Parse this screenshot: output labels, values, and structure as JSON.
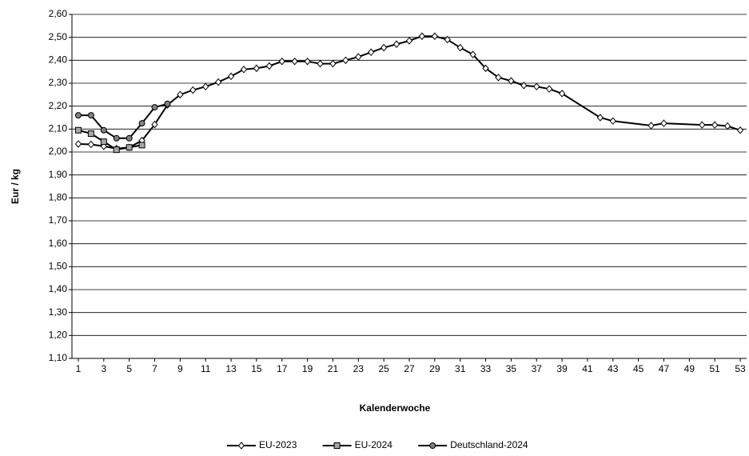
{
  "chart_data": {
    "type": "line",
    "ylabel": "Eur / kg",
    "xlabel": "Kalenderwoche",
    "xlim": [
      0.5,
      53.5
    ],
    "xticks": [
      1,
      3,
      5,
      7,
      9,
      11,
      13,
      15,
      17,
      19,
      21,
      23,
      25,
      27,
      29,
      31,
      33,
      35,
      37,
      39,
      41,
      43,
      45,
      47,
      49,
      51,
      53
    ],
    "ylim": [
      1.1,
      2.6
    ],
    "yticks": [
      {
        "value": 1.1,
        "label": "1,10"
      },
      {
        "value": 1.2,
        "label": "1,20"
      },
      {
        "value": 1.3,
        "label": "1,30"
      },
      {
        "value": 1.4,
        "label": "1,40"
      },
      {
        "value": 1.5,
        "label": "1,50"
      },
      {
        "value": 1.6,
        "label": "1,60"
      },
      {
        "value": 1.7,
        "label": "1,70"
      },
      {
        "value": 1.8,
        "label": "1,80"
      },
      {
        "value": 1.9,
        "label": "1,90"
      },
      {
        "value": 2.0,
        "label": "2,00"
      },
      {
        "value": 2.1,
        "label": "2,10"
      },
      {
        "value": 2.2,
        "label": "2,20"
      },
      {
        "value": 2.3,
        "label": "2,30"
      },
      {
        "value": 2.4,
        "label": "2,40"
      },
      {
        "value": 2.5,
        "label": "2,50"
      },
      {
        "value": 2.6,
        "label": "2,60"
      }
    ],
    "grid": true,
    "legend": "bottom",
    "series": [
      {
        "name": "EU-2023",
        "color": "#000000",
        "marker": "diamond",
        "marker_fill": "#ffffff",
        "x": [
          1,
          2,
          3,
          4,
          5,
          6,
          7,
          8,
          9,
          10,
          11,
          12,
          13,
          14,
          15,
          16,
          17,
          18,
          19,
          20,
          21,
          22,
          23,
          24,
          25,
          26,
          27,
          28,
          29,
          30,
          31,
          32,
          33,
          34,
          35,
          36,
          37,
          38,
          39,
          42,
          43,
          46,
          47,
          50,
          51,
          52,
          53
        ],
        "values": [
          2.035,
          2.033,
          2.025,
          2.015,
          2.02,
          2.05,
          2.12,
          2.205,
          2.25,
          2.27,
          2.285,
          2.305,
          2.33,
          2.36,
          2.365,
          2.375,
          2.395,
          2.395,
          2.395,
          2.385,
          2.385,
          2.4,
          2.415,
          2.435,
          2.455,
          2.47,
          2.485,
          2.505,
          2.505,
          2.49,
          2.455,
          2.425,
          2.365,
          2.325,
          2.31,
          2.29,
          2.285,
          2.275,
          2.255,
          2.15,
          2.135,
          2.115,
          2.125,
          2.118,
          2.118,
          2.113,
          2.095
        ]
      },
      {
        "name": "EU-2024",
        "color": "#000000",
        "marker": "square",
        "marker_fill": "#a6a6a6",
        "x": [
          1,
          2,
          3,
          4,
          5,
          6
        ],
        "values": [
          2.095,
          2.08,
          2.045,
          2.01,
          2.02,
          2.03
        ]
      },
      {
        "name": "Deutschland-2024",
        "color": "#000000",
        "marker": "circle",
        "marker_fill": "#808080",
        "x": [
          1,
          2,
          3,
          4,
          5,
          6,
          7,
          8
        ],
        "values": [
          2.16,
          2.16,
          2.095,
          2.06,
          2.06,
          2.125,
          2.195,
          2.21
        ]
      }
    ]
  }
}
